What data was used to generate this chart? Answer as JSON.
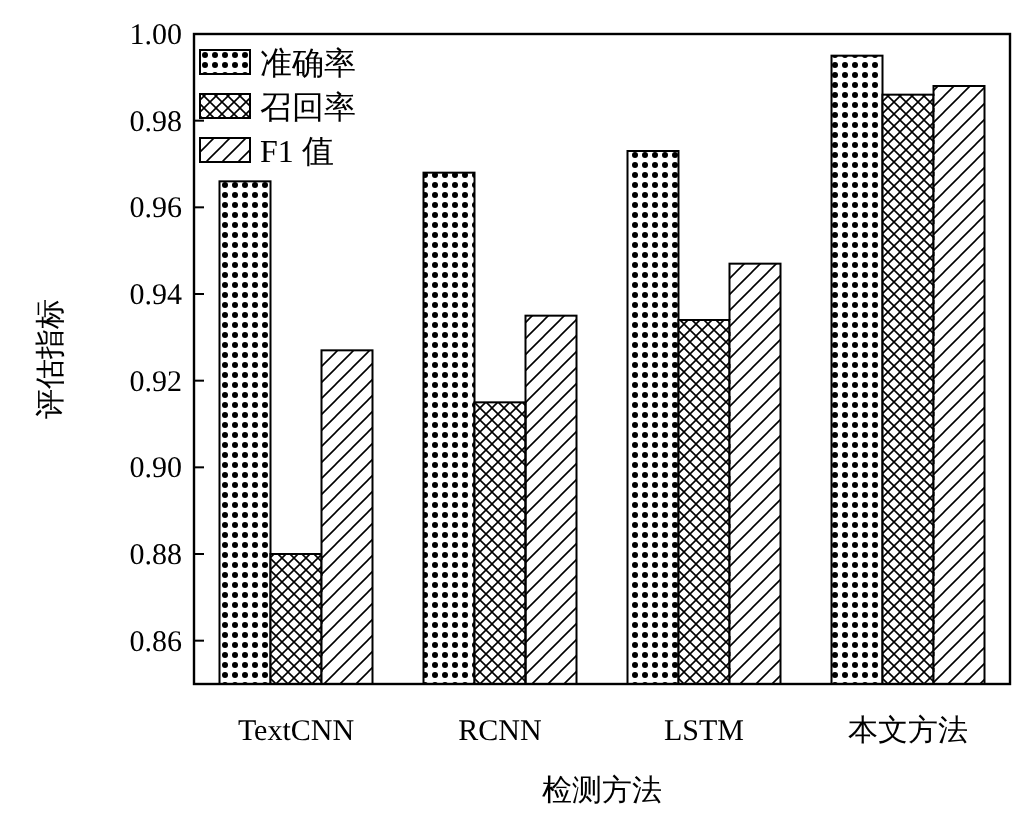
{
  "chart_data": {
    "type": "bar",
    "xlabel": "检测方法",
    "ylabel": "评估指标",
    "categories": [
      "TextCNN",
      "RCNN",
      "LSTM",
      "本文方法"
    ],
    "series": [
      {
        "name": "准确率",
        "color": "#000000",
        "values": [
          0.966,
          0.968,
          0.973,
          0.995
        ]
      },
      {
        "name": "召回率",
        "color": "#000000",
        "values": [
          0.88,
          0.915,
          0.934,
          0.986
        ]
      },
      {
        "name": "F1 值",
        "color": "#000000",
        "values": [
          0.927,
          0.935,
          0.947,
          0.988
        ]
      }
    ],
    "ylim": [
      0.85,
      1.0
    ],
    "yticks": [
      0.86,
      0.88,
      {
        "value": 0.9,
        "label": "0.90"
      },
      0.92,
      0.94,
      0.96,
      0.98,
      {
        "value": 1,
        "label": "1.00"
      }
    ],
    "legend": "top left",
    "grid": false
  }
}
